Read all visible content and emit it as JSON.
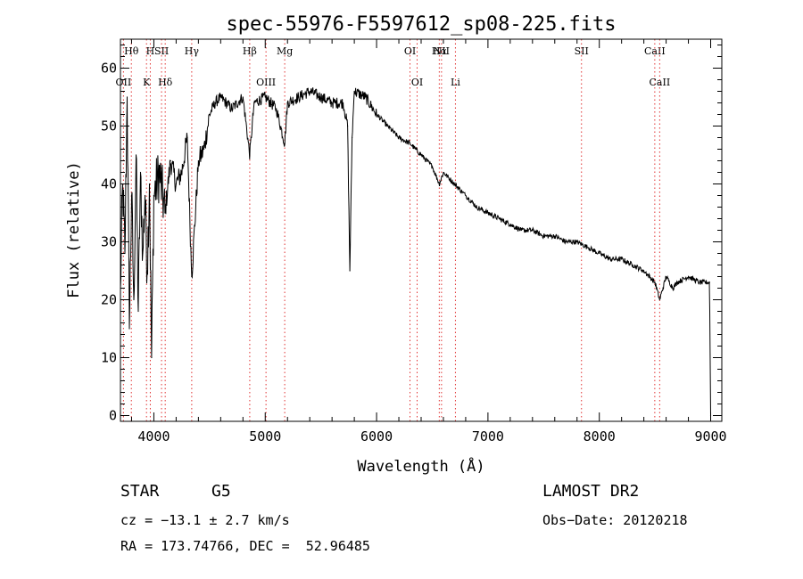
{
  "chart_data": {
    "type": "line",
    "title": "spec-55976-F5597612_sp08-225.fits",
    "xlabel": "Wavelength (Å)",
    "ylabel": "Flux (relative)",
    "xlim": [
      3700,
      9100
    ],
    "ylim": [
      -1,
      65
    ],
    "xticks": [
      4000,
      5000,
      6000,
      7000,
      8000,
      9000
    ],
    "yticks": [
      0,
      10,
      20,
      30,
      40,
      50,
      60
    ],
    "line_color": "#000000",
    "marker_color": "#e03030",
    "series": [
      {
        "name": "flux",
        "x": [
          3700,
          3720,
          3740,
          3760,
          3780,
          3800,
          3820,
          3840,
          3860,
          3880,
          3900,
          3920,
          3940,
          3960,
          3980,
          4000,
          4050,
          4100,
          4150,
          4200,
          4250,
          4300,
          4340,
          4400,
          4450,
          4500,
          4550,
          4600,
          4700,
          4800,
          4861,
          4900,
          5000,
          5100,
          5175,
          5200,
          5300,
          5400,
          5500,
          5600,
          5700,
          5740,
          5760,
          5780,
          5800,
          5900,
          6000,
          6100,
          6200,
          6300,
          6400,
          6500,
          6563,
          6600,
          6700,
          6800,
          6900,
          7000,
          7100,
          7200,
          7300,
          7400,
          7500,
          7600,
          7700,
          7800,
          7900,
          8000,
          8100,
          8200,
          8300,
          8400,
          8500,
          8542,
          8600,
          8662,
          8700,
          8800,
          8900,
          8990,
          9000
        ],
        "y": [
          22,
          40,
          28,
          55,
          15,
          38,
          20,
          45,
          18,
          42,
          28,
          38,
          25,
          40,
          10,
          38,
          42,
          35,
          44,
          40,
          42,
          48,
          24,
          44,
          46,
          52,
          54,
          55,
          53,
          55,
          45,
          54,
          55,
          53,
          47,
          54,
          55,
          56,
          55,
          54,
          54,
          50,
          25,
          48,
          56,
          55,
          52,
          50,
          48,
          47,
          45,
          43,
          40,
          42,
          40,
          38,
          36,
          35,
          34,
          33,
          32,
          32,
          31,
          31,
          30,
          30,
          29,
          28,
          27,
          27,
          26,
          25,
          23,
          20,
          24,
          22,
          23,
          24,
          23,
          23,
          0
        ]
      }
    ],
    "lines_top": [
      {
        "label": "Hθ",
        "wavelength": 3798
      },
      {
        "label": "SII",
        "wavelength": 4069
      },
      {
        "label": "H",
        "wavelength": 3968
      },
      {
        "label": "Hγ",
        "wavelength": 4340
      },
      {
        "label": "Hβ",
        "wavelength": 4861
      },
      {
        "label": "Mg",
        "wavelength": 5175
      },
      {
        "label": "OI",
        "wavelength": 6300
      },
      {
        "label": "Hα",
        "wavelength": 6563
      },
      {
        "label": "NII",
        "wavelength": 6583
      },
      {
        "label": "SII",
        "wavelength": 7840
      },
      {
        "label": "CaII",
        "wavelength": 8498
      }
    ],
    "lines_low": [
      {
        "label": "OII",
        "wavelength": 3727
      },
      {
        "label": "K",
        "wavelength": 3934
      },
      {
        "label": "Hδ",
        "wavelength": 4102
      },
      {
        "label": "OIII",
        "wavelength": 5007
      },
      {
        "label": "OI",
        "wavelength": 6364
      },
      {
        "label": "Li",
        "wavelength": 6708
      },
      {
        "label": "CaII",
        "wavelength": 8542
      }
    ],
    "extra_labels": [
      {
        "label": "OII",
        "wavelength": 3727
      }
    ]
  },
  "info": {
    "object_class": "STAR",
    "subclass": "G5",
    "redshift": "cz = −13.1 ± 2.7 km/s",
    "coords": "RA = 173.74766, DEC =  52.96485",
    "survey": "LAMOST DR2",
    "obs_date": "Obs−Date: 20120218"
  }
}
